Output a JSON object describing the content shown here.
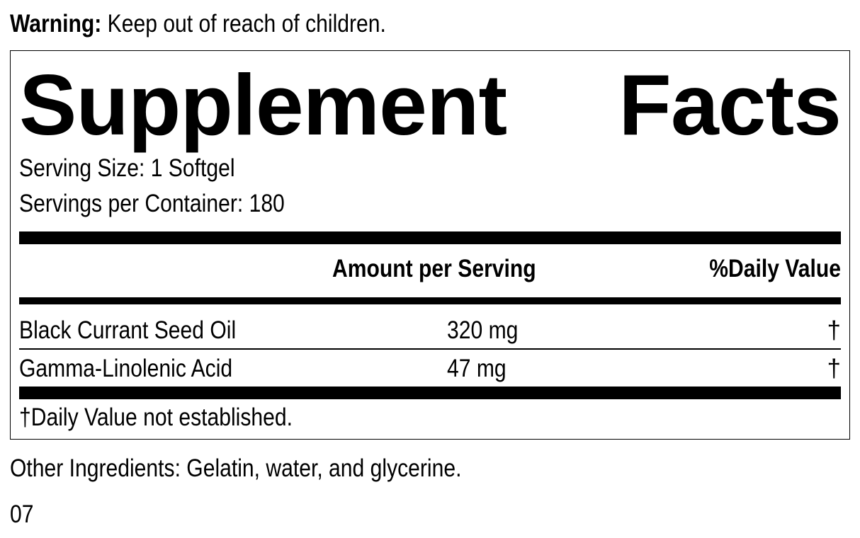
{
  "warning": {
    "label": "Warning:",
    "text": " Keep out of reach of children."
  },
  "title": {
    "word1": "Supplement",
    "word2": "Facts"
  },
  "serving_size": "Serving Size: 1 Softgel",
  "servings_per_container": "Servings per Container: 180",
  "header": {
    "amount": "Amount per Serving",
    "dv": "%Daily Value"
  },
  "rows": [
    {
      "name": "Black Currant Seed Oil",
      "amount": "320 mg",
      "dv": "†"
    },
    {
      "name": "Gamma-Linolenic Acid",
      "amount": "47 mg",
      "dv": "†"
    }
  ],
  "footnote": "†Daily Value not established.",
  "other_ingredients": "Other Ingredients: Gelatin, water, and glycerine.",
  "code": "07"
}
